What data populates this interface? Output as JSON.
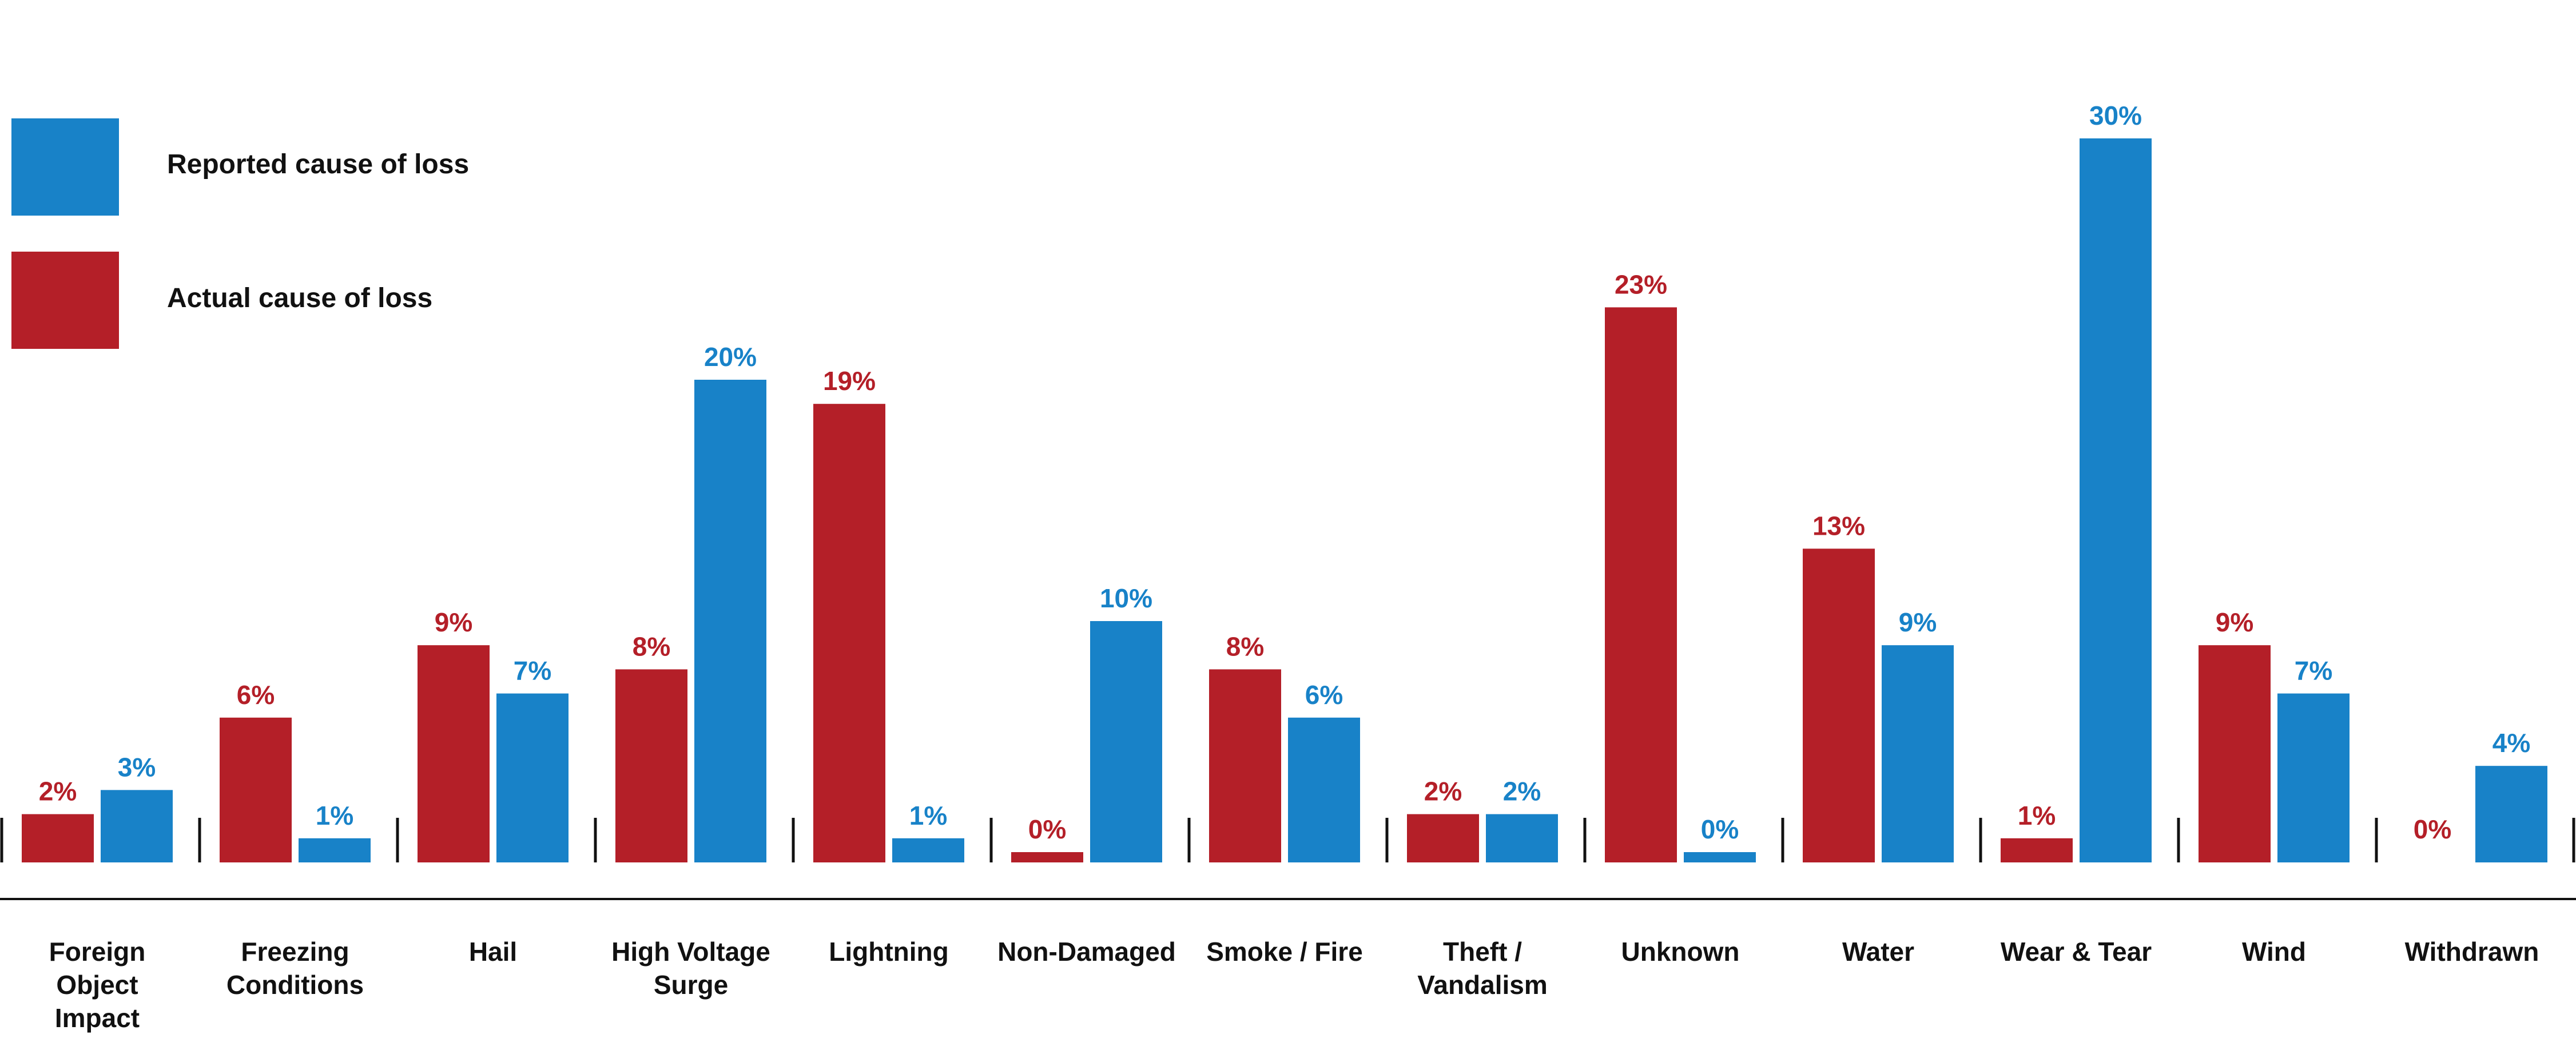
{
  "chart_data": {
    "type": "bar",
    "categories": [
      "Foreign Object Impact",
      "Freezing Conditions",
      "Hail",
      "High Voltage Surge",
      "Lightning",
      "Non-Damaged",
      "Smoke / Fire",
      "Theft / Vandalism",
      "Unknown",
      "Water",
      "Wear & Tear",
      "Wind",
      "Withdrawn"
    ],
    "category_lines": [
      [
        "Foreign",
        "Object",
        "Impact"
      ],
      [
        "Freezing",
        "Conditions"
      ],
      [
        "Hail"
      ],
      [
        "High Voltage",
        "Surge"
      ],
      [
        "Lightning"
      ],
      [
        "Non-Damaged"
      ],
      [
        "Smoke / Fire"
      ],
      [
        "Theft /",
        "Vandalism"
      ],
      [
        "Unknown"
      ],
      [
        "Water"
      ],
      [
        "Wear & Tear"
      ],
      [
        "Wind"
      ],
      [
        "Withdrawn"
      ]
    ],
    "series": [
      {
        "name": "Actual cause of loss",
        "color": "#B41F28",
        "values": [
          2,
          6,
          9,
          8,
          19,
          0,
          8,
          2,
          23,
          13,
          1,
          9,
          0
        ],
        "labels": [
          "2%",
          "6%",
          "9%",
          "8%",
          "19%",
          "0%",
          "8%",
          "2%",
          "23%",
          "13%",
          "1%",
          "9%",
          "0%"
        ]
      },
      {
        "name": "Reported cause of loss",
        "color": "#1882C8",
        "values": [
          3,
          1,
          7,
          20,
          1,
          10,
          6,
          2,
          0,
          9,
          30,
          7,
          4
        ],
        "labels": [
          "3%",
          "1%",
          "7%",
          "20%",
          "1%",
          "10%",
          "6%",
          "2%",
          "0%",
          "9%",
          "30%",
          "7%",
          "4%"
        ]
      }
    ],
    "legend": {
      "placement": "top-left",
      "entries": [
        {
          "label": "Reported cause of loss",
          "color": "#1882C8"
        },
        {
          "label": "Actual cause of loss",
          "color": "#B41F28"
        }
      ]
    },
    "title": "",
    "xlabel": "",
    "ylabel": "",
    "ylim": [
      0,
      30
    ],
    "grid": false
  }
}
